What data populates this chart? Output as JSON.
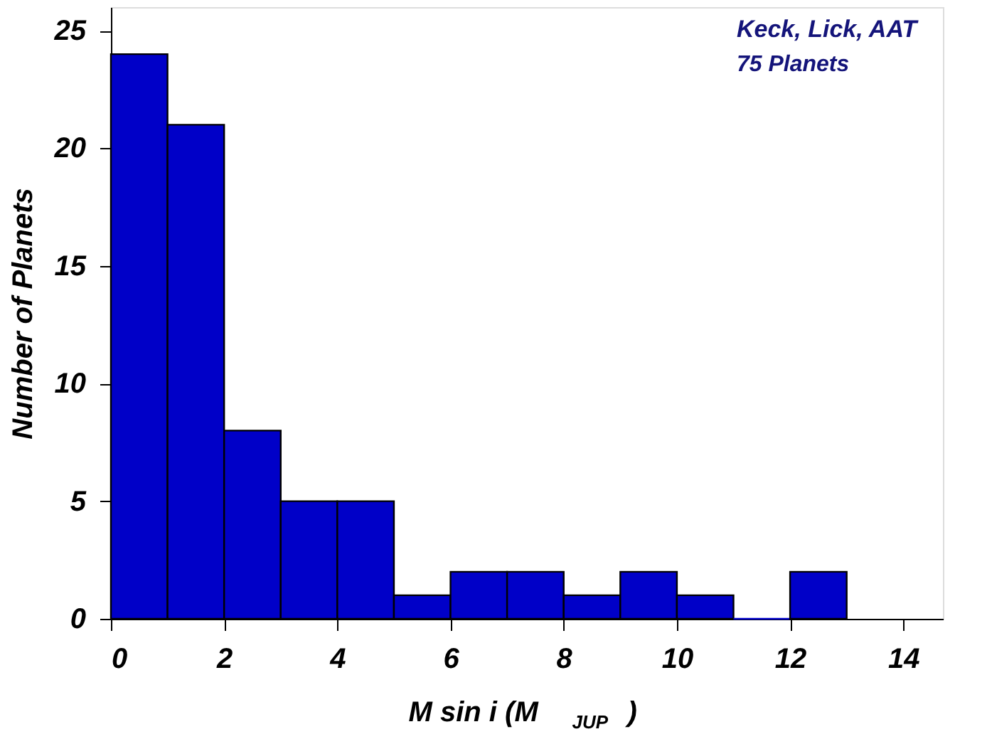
{
  "chart_data": {
    "type": "histogram",
    "xlabel": "M sin i (M$_{JUP}$)",
    "ylabel": "Number of Planets",
    "bins": [
      0,
      1,
      2,
      3,
      4,
      5,
      6,
      7,
      8,
      9,
      10,
      11,
      12,
      13
    ],
    "values": [
      24,
      21,
      8,
      5,
      5,
      1,
      2,
      2,
      1,
      2,
      1,
      0,
      2
    ],
    "color": "#0000c8",
    "xlim": [
      0,
      14.7
    ],
    "xticks": [
      0,
      2,
      4,
      6,
      8,
      10,
      12,
      14
    ],
    "ylim": [
      0,
      26
    ],
    "yticks": [
      0,
      5,
      10,
      15,
      20,
      25
    ],
    "annotations": [
      "Keck, Lick, AAT",
      "75 Planets"
    ],
    "grid": false
  }
}
